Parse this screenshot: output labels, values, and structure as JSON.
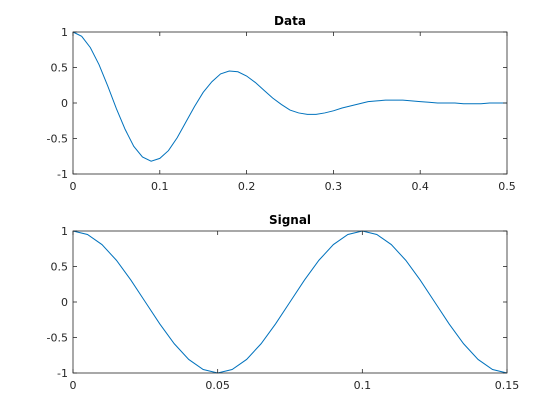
{
  "chart_data": [
    {
      "type": "line",
      "title": "Data",
      "x": [
        0,
        0.01,
        0.02,
        0.03,
        0.04,
        0.05,
        0.06,
        0.07,
        0.08,
        0.09,
        0.1,
        0.11,
        0.12,
        0.13,
        0.14,
        0.15,
        0.16,
        0.17,
        0.18,
        0.19,
        0.2,
        0.21,
        0.22,
        0.23,
        0.24,
        0.25,
        0.26,
        0.27,
        0.28,
        0.29,
        0.3,
        0.31,
        0.32,
        0.33,
        0.34,
        0.35,
        0.36,
        0.37,
        0.38,
        0.39,
        0.4,
        0.41,
        0.42,
        0.43,
        0.44,
        0.45,
        0.46,
        0.47,
        0.48,
        0.49,
        0.5
      ],
      "values": [
        1,
        0.94,
        0.78,
        0.54,
        0.24,
        -0.08,
        -0.37,
        -0.61,
        -0.76,
        -0.82,
        -0.78,
        -0.67,
        -0.49,
        -0.27,
        -0.05,
        0.15,
        0.3,
        0.41,
        0.45,
        0.44,
        0.38,
        0.29,
        0.18,
        0.07,
        -0.02,
        -0.1,
        -0.14,
        -0.16,
        -0.16,
        -0.14,
        -0.11,
        -0.07,
        -0.04,
        -0.01,
        0.02,
        0.03,
        0.04,
        0.04,
        0.04,
        0.03,
        0.02,
        0.01,
        0,
        0,
        0,
        -0.01,
        -0.01,
        -0.01,
        0,
        0,
        0
      ],
      "color": "#0072bd",
      "xlim": [
        0,
        0.5
      ],
      "xticks": [
        0,
        0.1,
        0.2,
        0.3,
        0.4,
        0.5
      ],
      "ylim": [
        -1,
        1
      ],
      "yticks": [
        -1,
        -0.5,
        0,
        0.5,
        1
      ]
    },
    {
      "type": "line",
      "title": "Signal",
      "x": [
        0,
        0.005,
        0.01,
        0.015,
        0.02,
        0.025,
        0.03,
        0.035,
        0.04,
        0.045,
        0.05,
        0.055,
        0.06,
        0.065,
        0.07,
        0.075,
        0.08,
        0.085,
        0.09,
        0.095,
        0.1,
        0.105,
        0.11,
        0.115,
        0.12,
        0.125,
        0.13,
        0.135,
        0.14,
        0.145,
        0.15
      ],
      "values": [
        1,
        0.951,
        0.809,
        0.588,
        0.309,
        0,
        -0.309,
        -0.588,
        -0.809,
        -0.951,
        -1,
        -0.951,
        -0.809,
        -0.588,
        -0.309,
        0,
        0.309,
        0.588,
        0.809,
        0.951,
        1,
        0.951,
        0.809,
        0.588,
        0.309,
        0,
        -0.309,
        -0.588,
        -0.809,
        -0.951,
        -1
      ],
      "color": "#0072bd",
      "xlim": [
        0,
        0.15
      ],
      "xticks": [
        0,
        0.05,
        0.1,
        0.15
      ],
      "ylim": [
        -1,
        1
      ],
      "yticks": [
        -1,
        -0.5,
        0,
        0.5,
        1
      ]
    }
  ]
}
